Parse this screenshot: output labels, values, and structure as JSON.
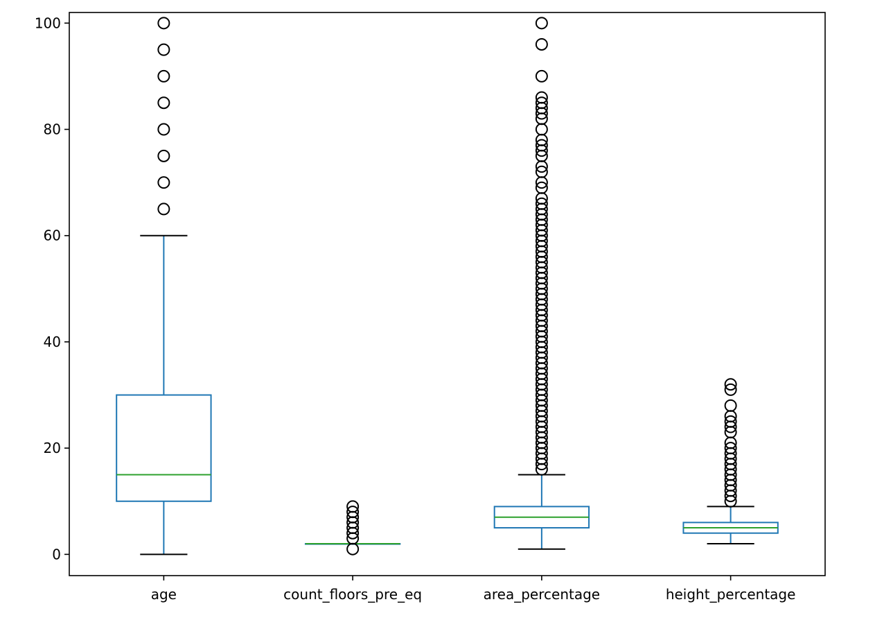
{
  "chart_data": {
    "type": "box",
    "title": "",
    "xlabel": "",
    "ylabel": "",
    "ylim": [
      -4,
      102
    ],
    "y_ticks": [
      "0",
      "20",
      "40",
      "60",
      "80",
      "100"
    ],
    "grid": false,
    "colors": {
      "box": "#1f77b4",
      "median": "#2ca02c",
      "whisker": "#1f77b4",
      "cap": "#000000",
      "flier": "#000000"
    },
    "categories": [
      "age",
      "count_floors_pre_eq",
      "area_percentage",
      "height_percentage"
    ],
    "boxes": [
      {
        "name": "age",
        "whislo": 0,
        "q1": 10,
        "med": 15,
        "q3": 30,
        "whishi": 60,
        "fliers": [
          65,
          70,
          75,
          80,
          85,
          90,
          95,
          100
        ]
      },
      {
        "name": "count_floors_pre_eq",
        "whislo": 2,
        "q1": 2,
        "med": 2,
        "q3": 2,
        "whishi": 2,
        "fliers": [
          1,
          3,
          4,
          5,
          6,
          7,
          8,
          9
        ]
      },
      {
        "name": "area_percentage",
        "whislo": 1,
        "q1": 5,
        "med": 7,
        "q3": 9,
        "whishi": 15,
        "fliers": [
          16,
          17,
          18,
          19,
          20,
          21,
          22,
          23,
          24,
          25,
          26,
          27,
          28,
          29,
          30,
          31,
          32,
          33,
          34,
          35,
          36,
          37,
          38,
          39,
          40,
          41,
          42,
          43,
          44,
          45,
          46,
          47,
          48,
          49,
          50,
          51,
          52,
          53,
          54,
          55,
          56,
          57,
          58,
          59,
          60,
          61,
          62,
          63,
          64,
          65,
          66,
          67,
          69,
          70,
          72,
          73,
          75,
          76,
          77,
          78,
          80,
          82,
          83,
          84,
          85,
          86,
          90,
          96,
          100
        ]
      },
      {
        "name": "height_percentage",
        "whislo": 2,
        "q1": 4,
        "med": 5,
        "q3": 6,
        "whishi": 9,
        "fliers": [
          10,
          11,
          12,
          13,
          14,
          15,
          16,
          17,
          18,
          19,
          20,
          21,
          23,
          24,
          25,
          26,
          28,
          31,
          32
        ]
      }
    ]
  }
}
